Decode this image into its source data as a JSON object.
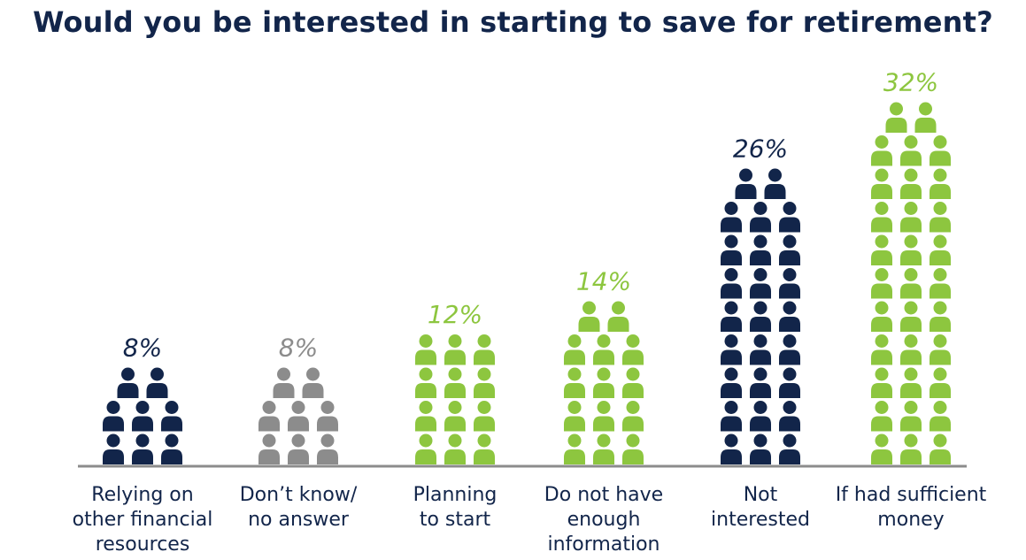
{
  "chart_data": {
    "type": "bar",
    "title": "Would you be interested in starting to save for retirement?",
    "categories": [
      [
        "Relying on",
        "other financial",
        "resources"
      ],
      [
        "Don’t know/",
        "no answer"
      ],
      [
        "Planning",
        "to start"
      ],
      [
        "Do not have",
        "enough",
        "information"
      ],
      [
        "Not",
        "interested"
      ],
      [
        "If had sufficient",
        "money"
      ]
    ],
    "values": [
      8,
      8,
      12,
      14,
      26,
      32
    ],
    "value_labels": [
      "8%",
      "8%",
      "12%",
      "14%",
      "26%",
      "32%"
    ],
    "colors": [
      "#12254a",
      "#8c8c8c",
      "#8dc63f",
      "#8dc63f",
      "#12254a",
      "#8dc63f"
    ],
    "unit": "%",
    "icon": "person-icon",
    "grid": false,
    "legend": "none"
  }
}
